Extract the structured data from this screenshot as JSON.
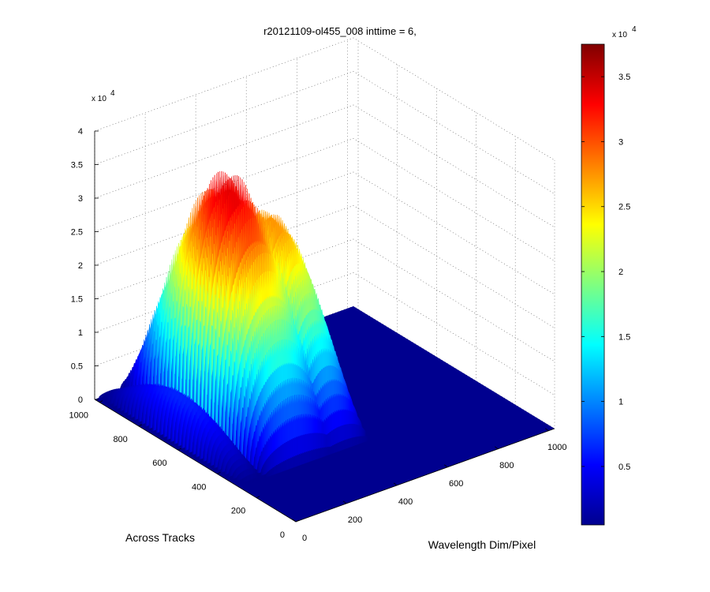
{
  "chart_data": {
    "type": "surface",
    "title": "r20121109-ol455_008 inttime = 6,",
    "xlabel": "Wavelength Dim/Pixel",
    "ylabel": "Across Tracks",
    "x_range": [
      0,
      1024
    ],
    "y_range": [
      0,
      1024
    ],
    "z_range": [
      0,
      40000
    ],
    "z_exponent_label": "x 10",
    "z_exponent_power": "4",
    "x_ticks": [
      "0",
      "200",
      "400",
      "600",
      "800",
      "1000"
    ],
    "x_tick_values": [
      0,
      200,
      400,
      600,
      800,
      1000
    ],
    "y_ticks": [
      "0",
      "200",
      "400",
      "600",
      "800",
      "1000"
    ],
    "y_tick_values": [
      0,
      200,
      400,
      600,
      800,
      1000
    ],
    "z_ticks": [
      "0",
      "0.5",
      "1",
      "1.5",
      "2",
      "2.5",
      "3",
      "3.5",
      "4"
    ],
    "z_tick_values": [
      0,
      5000,
      10000,
      15000,
      20000,
      25000,
      30000,
      35000,
      40000
    ],
    "grid": true,
    "colormap": "jet",
    "colorbar": {
      "range": [
        500,
        37500
      ],
      "ticks": [
        "0.5",
        "1",
        "1.5",
        "2",
        "2.5",
        "3",
        "3.5"
      ],
      "tick_values": [
        5000,
        10000,
        15000,
        20000,
        25000,
        30000,
        35000
      ],
      "exponent_label": "x 10",
      "exponent_power": "4"
    },
    "illuminated_region": {
      "y_range": [
        290,
        1024
      ],
      "x_range": [
        0,
        520
      ],
      "peak_value": 37000
    },
    "spectral_humps": [
      {
        "x_center": 60,
        "x_width": 45,
        "peak": 7000
      },
      {
        "x_center": 250,
        "x_width": 150,
        "peak": 37000
      },
      {
        "x_center": 420,
        "x_width": 100,
        "peak": 30000
      }
    ]
  }
}
